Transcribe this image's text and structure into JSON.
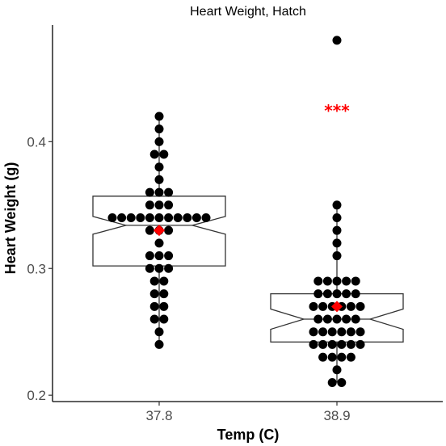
{
  "chart_data": {
    "type": "boxplot-dotplot",
    "title": "Heart Weight, Hatch",
    "xlabel": "Temp (C)",
    "ylabel": "Heart Weight (g)",
    "categories": [
      "37.8",
      "38.9"
    ],
    "ylim": [
      0.195,
      0.492
    ],
    "yticks": [
      0.2,
      0.3,
      0.4
    ],
    "ytick_labels": [
      "0.2",
      "0.3",
      "0.4"
    ],
    "grid": false,
    "notched": true,
    "groups": [
      {
        "category": "37.8",
        "q1": 0.302,
        "median": 0.334,
        "q3": 0.357,
        "notch_low": 0.327,
        "notch_high": 0.341,
        "whisker_low": 0.24,
        "whisker_high": 0.42,
        "mean": 0.33,
        "points": [
          0.24,
          0.25,
          0.26,
          0.26,
          0.27,
          0.27,
          0.28,
          0.28,
          0.29,
          0.29,
          0.3,
          0.3,
          0.3,
          0.31,
          0.31,
          0.31,
          0.32,
          0.33,
          0.33,
          0.33,
          0.34,
          0.34,
          0.34,
          0.34,
          0.34,
          0.34,
          0.34,
          0.34,
          0.34,
          0.34,
          0.34,
          0.35,
          0.35,
          0.35,
          0.36,
          0.36,
          0.36,
          0.37,
          0.38,
          0.39,
          0.39,
          0.4,
          0.41,
          0.42
        ]
      },
      {
        "category": "38.9",
        "q1": 0.242,
        "median": 0.26,
        "q3": 0.28,
        "notch_low": 0.252,
        "notch_high": 0.268,
        "whisker_low": 0.21,
        "whisker_high": 0.35,
        "mean": 0.27,
        "outliers": [
          0.48
        ],
        "annotation": "***",
        "annotation_y": 0.425,
        "points": [
          0.21,
          0.21,
          0.22,
          0.23,
          0.23,
          0.23,
          0.23,
          0.24,
          0.24,
          0.24,
          0.24,
          0.24,
          0.24,
          0.25,
          0.25,
          0.25,
          0.25,
          0.25,
          0.25,
          0.26,
          0.26,
          0.26,
          0.26,
          0.26,
          0.27,
          0.27,
          0.27,
          0.27,
          0.27,
          0.27,
          0.28,
          0.28,
          0.28,
          0.28,
          0.28,
          0.29,
          0.29,
          0.29,
          0.29,
          0.29,
          0.31,
          0.32,
          0.33,
          0.34,
          0.35,
          0.48
        ]
      }
    ],
    "colors": {
      "points": "#000000",
      "mean": "#ff0000",
      "annotation": "#ff0000",
      "box_stroke": "#333333",
      "axis": "#000000"
    }
  }
}
